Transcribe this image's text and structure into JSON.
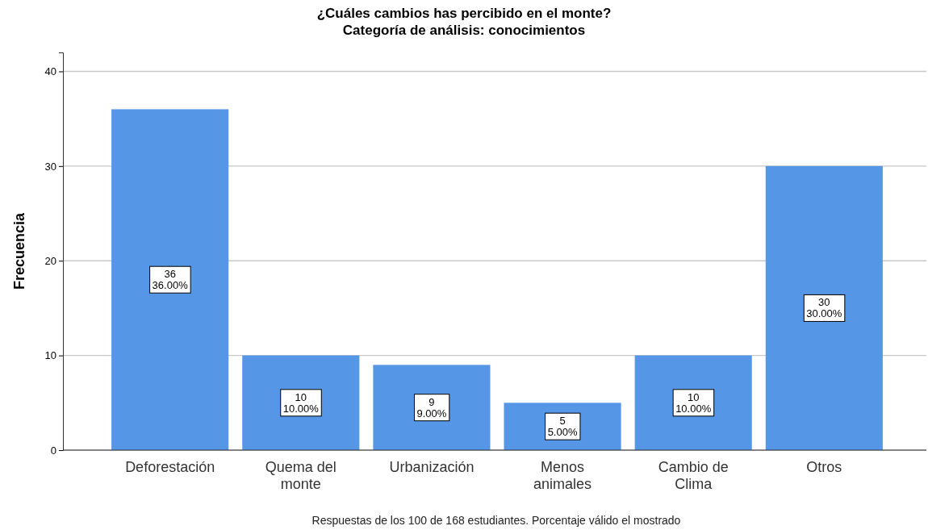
{
  "chart_data": {
    "type": "bar",
    "title": "¿Cuáles cambios has percibido en el monte?\nCategoría de análisis: conocimientos",
    "ylabel": "Frecuencia",
    "categories": [
      "Deforestación",
      "Quema del monte",
      "Urbanización",
      "Menos animales",
      "Cambio de Clima",
      "Otros"
    ],
    "values": [
      36,
      10,
      9,
      5,
      10,
      30
    ],
    "color": "#5596e6",
    "value_labels": [
      "36\n36.00%",
      "10\n10.00%",
      "9\n9.00%",
      "5\n5.00%",
      "10\n10.00%",
      "30\n30.00%"
    ],
    "ylim": [
      0,
      42
    ],
    "yticks": [
      0,
      10,
      20,
      30,
      40
    ],
    "grid": "y",
    "annotations": [
      "Respuestas de los 100 de 168 estudiantes. Porcentaje válido el mostrado"
    ]
  }
}
